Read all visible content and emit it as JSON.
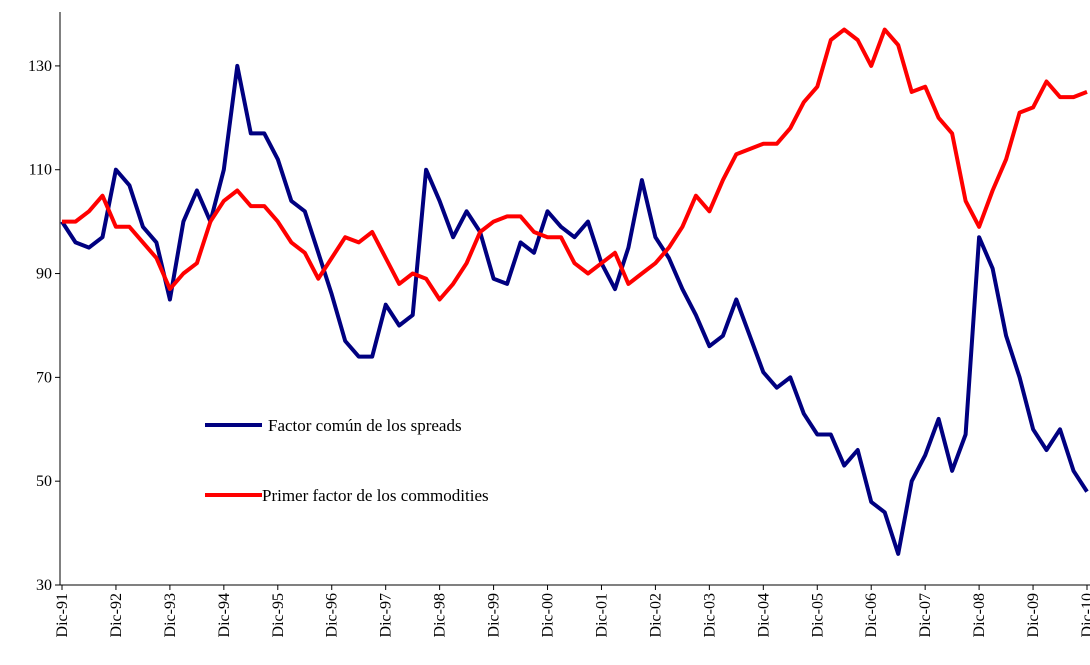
{
  "chart_data": {
    "type": "line",
    "categories": [
      "Dic-91",
      null,
      null,
      null,
      "Dic-92",
      null,
      null,
      null,
      "Dic-93",
      null,
      null,
      null,
      "Dic-94",
      null,
      null,
      null,
      "Dic-95",
      null,
      null,
      null,
      "Dic-96",
      null,
      null,
      null,
      "Dic-97",
      null,
      null,
      null,
      "Dic-98",
      null,
      null,
      null,
      "Dic-99",
      null,
      null,
      null,
      "Dic-00",
      null,
      null,
      null,
      "Dic-01",
      null,
      null,
      null,
      "Dic-02",
      null,
      null,
      null,
      "Dic-03",
      null,
      null,
      null,
      "Dic-04",
      null,
      null,
      null,
      "Dic-05",
      null,
      null,
      null,
      "Dic-06",
      null,
      null,
      null,
      "Dic-07",
      null,
      null,
      null,
      "Dic-08",
      null,
      null,
      null,
      "Dic-09",
      null,
      null,
      null,
      "Dic-10"
    ],
    "series": [
      {
        "name": "Factor común de los spreads",
        "color": "#000080",
        "values": [
          100,
          96,
          95,
          97,
          110,
          107,
          99,
          96,
          85,
          100,
          106,
          100,
          110,
          130,
          117,
          117,
          112,
          104,
          102,
          94,
          86,
          77,
          74,
          74,
          84,
          80,
          82,
          110,
          104,
          97,
          102,
          98,
          89,
          88,
          96,
          94,
          102,
          99,
          97,
          100,
          92,
          87,
          95,
          108,
          97,
          93,
          87,
          82,
          76,
          78,
          85,
          78,
          71,
          68,
          70,
          63,
          59,
          59,
          53,
          56,
          46,
          44,
          36,
          50,
          55,
          62,
          52,
          59,
          97,
          91,
          78,
          70,
          60,
          56,
          60,
          52,
          48
        ]
      },
      {
        "name": "Primer factor de los commodities",
        "color": "#ff0000",
        "values": [
          100,
          100,
          102,
          105,
          99,
          99,
          96,
          93,
          87,
          90,
          92,
          100,
          104,
          106,
          103,
          103,
          100,
          96,
          94,
          89,
          93,
          97,
          96,
          98,
          93,
          88,
          90,
          89,
          85,
          88,
          92,
          98,
          100,
          101,
          101,
          98,
          97,
          97,
          92,
          90,
          92,
          94,
          88,
          90,
          92,
          95,
          99,
          105,
          102,
          108,
          113,
          114,
          115,
          115,
          118,
          123,
          126,
          135,
          137,
          135,
          130,
          137,
          134,
          125,
          126,
          120,
          117,
          104,
          99,
          106,
          112,
          121,
          122,
          127,
          124,
          124,
          125
        ]
      }
    ],
    "ylim": [
      30,
      140
    ],
    "yticks": [
      30,
      50,
      70,
      90,
      110,
      130
    ],
    "grid": false
  }
}
